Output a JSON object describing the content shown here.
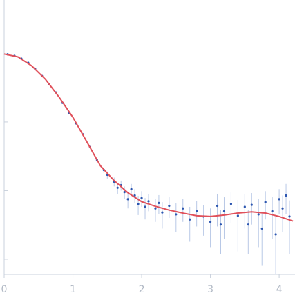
{
  "chart_data": {
    "type": "scatter",
    "yscale": "log",
    "xlim": [
      0,
      4.2
    ],
    "xticks": [
      0,
      1,
      2,
      3,
      4
    ],
    "ylim": [
      0.0006,
      6
    ],
    "yticks": [
      0.001,
      0.01,
      0.1
    ],
    "series": [
      {
        "color": "#2c56b0",
        "error_color": "#b8c8e6",
        "x": [
          0.05,
          0.15,
          0.25,
          0.35,
          0.45,
          0.55,
          0.65,
          0.75,
          0.85,
          0.95,
          1.05,
          1.15,
          1.25,
          1.35,
          1.45,
          1.5,
          1.6,
          1.65,
          1.7,
          1.75,
          1.8,
          1.85,
          1.9,
          1.95,
          2.0,
          2.05,
          2.1,
          2.2,
          2.25,
          2.3,
          2.4,
          2.5,
          2.6,
          2.7,
          2.8,
          2.9,
          3.0,
          3.1,
          3.15,
          3.2,
          3.3,
          3.4,
          3.5,
          3.55,
          3.6,
          3.7,
          3.75,
          3.8,
          3.9,
          3.95,
          4.0,
          4.05,
          4.1,
          4.15
        ],
        "values": [
          0.97,
          0.92,
          0.84,
          0.73,
          0.6,
          0.47,
          0.36,
          0.27,
          0.19,
          0.135,
          0.095,
          0.066,
          0.043,
          0.028,
          0.02,
          0.017,
          0.0135,
          0.011,
          0.012,
          0.0095,
          0.0075,
          0.0105,
          0.0085,
          0.0064,
          0.0078,
          0.0058,
          0.007,
          0.0055,
          0.0066,
          0.0048,
          0.006,
          0.0045,
          0.0055,
          0.0038,
          0.005,
          0.0042,
          0.0035,
          0.006,
          0.0032,
          0.005,
          0.0064,
          0.0043,
          0.0058,
          0.0032,
          0.0062,
          0.0045,
          0.0028,
          0.0068,
          0.005,
          0.0023,
          0.0075,
          0.0055,
          0.0085,
          0.0042
        ],
        "errors": [
          0.01,
          0.01,
          0.01,
          0.01,
          0.01,
          0.01,
          0.01,
          0.005,
          0.004,
          0.003,
          0.002,
          0.002,
          0.002,
          0.002,
          0.002,
          0.002,
          0.002,
          0.002,
          0.002,
          0.002,
          0.002,
          0.002,
          0.002,
          0.002,
          0.002,
          0.002,
          0.002,
          0.002,
          0.002,
          0.002,
          0.002,
          0.002,
          0.002,
          0.002,
          0.002,
          0.002,
          0.002,
          0.003,
          0.002,
          0.003,
          0.003,
          0.003,
          0.003,
          0.002,
          0.003,
          0.003,
          0.002,
          0.003,
          0.003,
          0.002,
          0.003,
          0.003,
          0.004,
          0.003
        ]
      }
    ],
    "fit": {
      "color": "#e0505a",
      "x": [
        0,
        0.2,
        0.4,
        0.6,
        0.8,
        1.0,
        1.2,
        1.4,
        1.6,
        1.8,
        2.0,
        2.2,
        2.4,
        2.6,
        2.8,
        3.0,
        3.2,
        3.4,
        3.6,
        3.8,
        4.0,
        4.2
      ],
      "values": [
        0.98,
        0.89,
        0.66,
        0.42,
        0.23,
        0.117,
        0.052,
        0.023,
        0.014,
        0.0093,
        0.0069,
        0.0059,
        0.0052,
        0.0047,
        0.0043,
        0.0042,
        0.0044,
        0.0047,
        0.0049,
        0.0047,
        0.0042,
        0.0036
      ]
    }
  }
}
